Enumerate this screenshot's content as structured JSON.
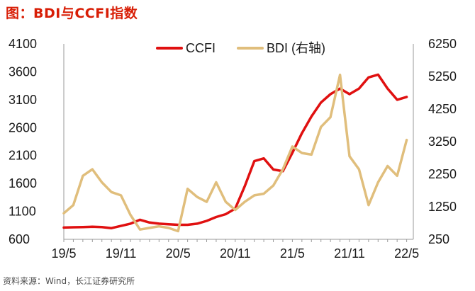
{
  "title": "图：BDI与CCFI指数",
  "source": "资料来源：Wind，长江证券研究所",
  "colors": {
    "ccfi": "#e01010",
    "bdi": "#e0be7c",
    "title": "#d81e06"
  },
  "chart_data": {
    "type": "line",
    "title": "图：BDI与CCFI指数",
    "x_ticks": [
      "19/5",
      "19/11",
      "20/5",
      "20/11",
      "21/5",
      "21/11",
      "22/5"
    ],
    "y_left": {
      "ticks": [
        600,
        1100,
        1600,
        2100,
        2600,
        3100,
        3600,
        4100
      ],
      "lim": [
        600,
        4100
      ]
    },
    "y_right": {
      "ticks": [
        250,
        1250,
        2250,
        3250,
        4250,
        5250,
        6250
      ],
      "lim": [
        250,
        6250
      ]
    },
    "grid": false,
    "legend": "top-center",
    "series": [
      {
        "name": "CCFI",
        "axis": "left",
        "color": "#e01010",
        "x": [
          "2019-05",
          "2019-06",
          "2019-07",
          "2019-08",
          "2019-09",
          "2019-10",
          "2019-11",
          "2019-12",
          "2020-01",
          "2020-02",
          "2020-03",
          "2020-04",
          "2020-05",
          "2020-06",
          "2020-07",
          "2020-08",
          "2020-09",
          "2020-10",
          "2020-11",
          "2020-12",
          "2021-01",
          "2021-02",
          "2021-03",
          "2021-04",
          "2021-05",
          "2021-06",
          "2021-07",
          "2021-08",
          "2021-09",
          "2021-10",
          "2021-11",
          "2021-12",
          "2022-01",
          "2022-02",
          "2022-03",
          "2022-04",
          "2022-05"
        ],
        "values": [
          810,
          815,
          820,
          825,
          820,
          800,
          840,
          880,
          950,
          900,
          880,
          870,
          860,
          860,
          880,
          930,
          1000,
          1050,
          1150,
          1550,
          2000,
          2050,
          1850,
          1820,
          2150,
          2500,
          2800,
          3050,
          3200,
          3300,
          3200,
          3300,
          3500,
          3550,
          3300,
          3100,
          3150
        ]
      },
      {
        "name": "BDI (右轴)",
        "axis": "right",
        "color": "#e0be7c",
        "x": [
          "2019-05",
          "2019-06",
          "2019-07",
          "2019-08",
          "2019-09",
          "2019-10",
          "2019-11",
          "2019-12",
          "2020-01",
          "2020-02",
          "2020-03",
          "2020-04",
          "2020-05",
          "2020-06",
          "2020-07",
          "2020-08",
          "2020-09",
          "2020-10",
          "2020-11",
          "2020-12",
          "2021-01",
          "2021-02",
          "2021-03",
          "2021-04",
          "2021-05",
          "2021-06",
          "2021-07",
          "2021-08",
          "2021-09",
          "2021-10",
          "2021-11",
          "2021-12",
          "2022-01",
          "2022-02",
          "2022-03",
          "2022-04",
          "2022-05"
        ],
        "values": [
          1050,
          1300,
          2200,
          2400,
          2000,
          1700,
          1600,
          1000,
          550,
          600,
          650,
          600,
          500,
          1800,
          1550,
          1400,
          2000,
          1400,
          1150,
          1400,
          1600,
          1650,
          1900,
          2400,
          3100,
          2900,
          2850,
          3700,
          4000,
          5300,
          2800,
          2400,
          1300,
          2000,
          2500,
          2200,
          3300
        ]
      }
    ]
  }
}
